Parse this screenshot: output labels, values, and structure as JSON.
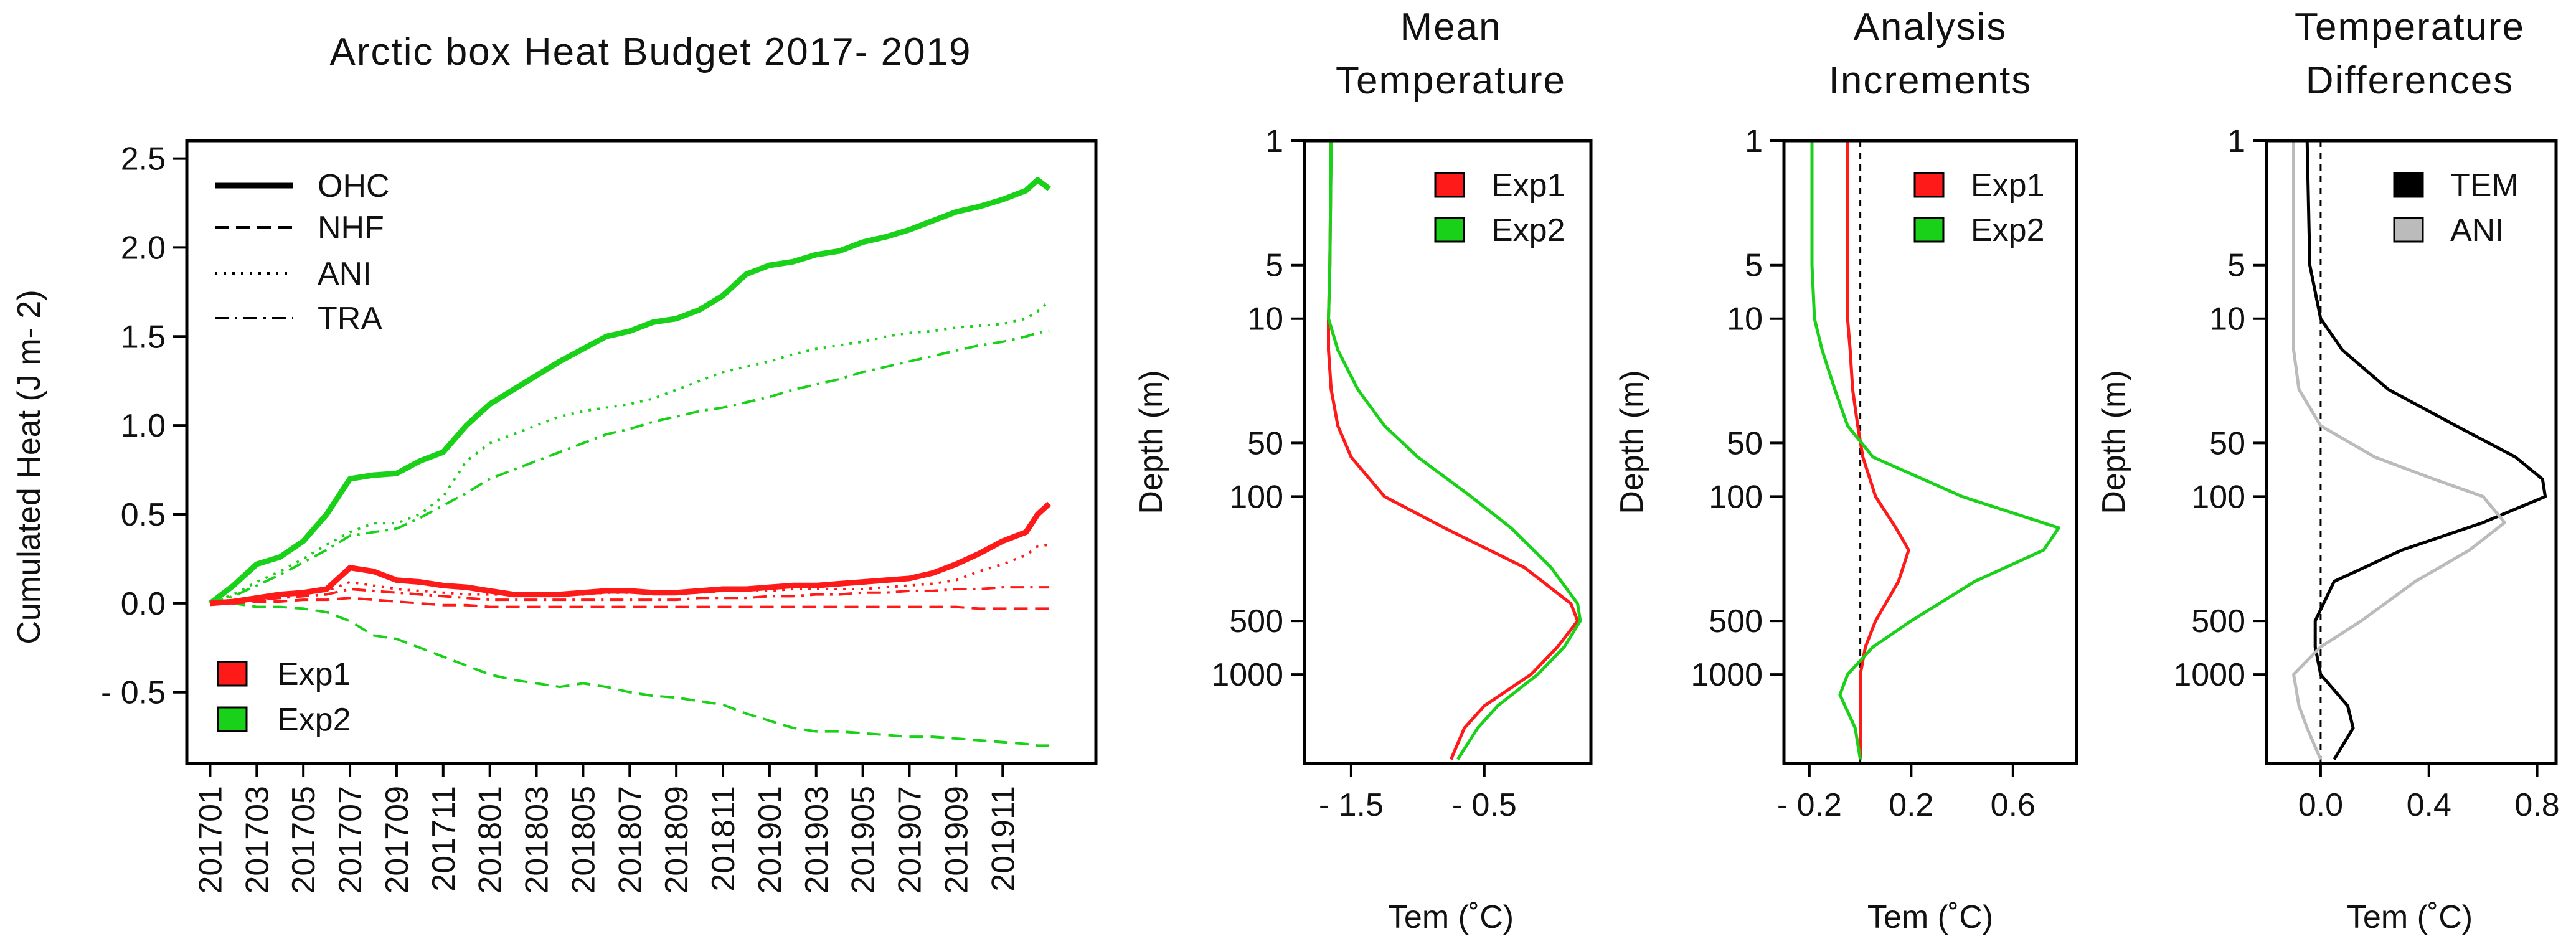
{
  "colors": {
    "exp1": "#ff1a1a",
    "exp2": "#1ad11a",
    "tem": "#000000",
    "ani": "#bbbbbb",
    "axis": "#000000"
  },
  "chart_data": [
    {
      "id": "budget",
      "type": "line",
      "title": "Arctic box Heat Budget 2017- 2019",
      "xlabel": "",
      "ylabel": "Cumulated Heat (J m- 2)",
      "ylim": [
        -0.9,
        2.6
      ],
      "yticks": [
        2.5,
        2.0,
        1.5,
        1.0,
        0.5,
        0.0,
        -0.5
      ],
      "ytick_labels": [
        "2.5",
        "2.0",
        "1.5",
        "1.0",
        "0.5",
        "0.0",
        "- 0.5"
      ],
      "xlim": [
        -1,
        38
      ],
      "xtick_positions": [
        0,
        2,
        4,
        6,
        8,
        10,
        12,
        14,
        16,
        18,
        20,
        22,
        24,
        26,
        28,
        30,
        32,
        34
      ],
      "xtick_labels": [
        "201701",
        "201703",
        "201705",
        "201707",
        "201709",
        "201711",
        "201801",
        "201803",
        "201805",
        "201807",
        "201809",
        "201811",
        "201901",
        "201903",
        "201905",
        "201907",
        "201909",
        "201911"
      ],
      "x": [
        0,
        1,
        2,
        3,
        4,
        5,
        6,
        7,
        8,
        9,
        10,
        11,
        12,
        13,
        14,
        15,
        16,
        17,
        18,
        19,
        20,
        21,
        22,
        23,
        24,
        25,
        26,
        27,
        28,
        29,
        30,
        31,
        32,
        33,
        34,
        35,
        35.5,
        36
      ],
      "series": [
        {
          "name": "Exp2 OHC",
          "experiment": "Exp2",
          "style": "OHC",
          "values": [
            0.0,
            0.1,
            0.22,
            0.26,
            0.35,
            0.5,
            0.7,
            0.72,
            0.73,
            0.8,
            0.85,
            1.0,
            1.12,
            1.2,
            1.28,
            1.36,
            1.43,
            1.5,
            1.53,
            1.58,
            1.6,
            1.65,
            1.73,
            1.85,
            1.9,
            1.92,
            1.96,
            1.98,
            2.03,
            2.06,
            2.1,
            2.15,
            2.2,
            2.23,
            2.27,
            2.32,
            2.38,
            2.33
          ]
        },
        {
          "name": "Exp2 NHF",
          "experiment": "Exp2",
          "style": "NHF",
          "values": [
            0.0,
            0.0,
            -0.02,
            -0.02,
            -0.03,
            -0.05,
            -0.1,
            -0.18,
            -0.2,
            -0.25,
            -0.3,
            -0.35,
            -0.4,
            -0.43,
            -0.45,
            -0.47,
            -0.45,
            -0.47,
            -0.5,
            -0.52,
            -0.53,
            -0.55,
            -0.57,
            -0.62,
            -0.66,
            -0.7,
            -0.72,
            -0.72,
            -0.73,
            -0.74,
            -0.75,
            -0.75,
            -0.76,
            -0.77,
            -0.78,
            -0.79,
            -0.8,
            -0.8
          ]
        },
        {
          "name": "Exp2 ANI",
          "experiment": "Exp2",
          "style": "ANI",
          "values": [
            0.0,
            0.05,
            0.12,
            0.18,
            0.25,
            0.33,
            0.4,
            0.45,
            0.45,
            0.5,
            0.6,
            0.8,
            0.9,
            0.95,
            1.0,
            1.05,
            1.08,
            1.1,
            1.12,
            1.15,
            1.2,
            1.25,
            1.3,
            1.33,
            1.36,
            1.4,
            1.43,
            1.45,
            1.47,
            1.5,
            1.52,
            1.53,
            1.55,
            1.56,
            1.57,
            1.6,
            1.64,
            1.7
          ]
        },
        {
          "name": "Exp2 TRA",
          "experiment": "Exp2",
          "style": "TRA",
          "values": [
            0.0,
            0.04,
            0.1,
            0.16,
            0.23,
            0.3,
            0.38,
            0.4,
            0.42,
            0.48,
            0.55,
            0.62,
            0.7,
            0.75,
            0.8,
            0.85,
            0.9,
            0.95,
            0.98,
            1.02,
            1.05,
            1.08,
            1.1,
            1.13,
            1.16,
            1.2,
            1.23,
            1.26,
            1.3,
            1.33,
            1.36,
            1.39,
            1.42,
            1.45,
            1.47,
            1.5,
            1.52,
            1.53
          ]
        },
        {
          "name": "Exp1 OHC",
          "experiment": "Exp1",
          "style": "OHC",
          "values": [
            0.0,
            0.01,
            0.03,
            0.05,
            0.06,
            0.08,
            0.2,
            0.18,
            0.13,
            0.12,
            0.1,
            0.09,
            0.07,
            0.05,
            0.05,
            0.05,
            0.06,
            0.07,
            0.07,
            0.06,
            0.06,
            0.07,
            0.08,
            0.08,
            0.09,
            0.1,
            0.1,
            0.11,
            0.12,
            0.13,
            0.14,
            0.17,
            0.22,
            0.28,
            0.35,
            0.4,
            0.5,
            0.56
          ]
        },
        {
          "name": "Exp1 NHF",
          "experiment": "Exp1",
          "style": "NHF",
          "values": [
            0.0,
            0.0,
            0.01,
            0.01,
            0.02,
            0.02,
            0.03,
            0.02,
            0.01,
            0.0,
            -0.01,
            -0.01,
            -0.02,
            -0.02,
            -0.02,
            -0.02,
            -0.02,
            -0.02,
            -0.02,
            -0.02,
            -0.02,
            -0.02,
            -0.02,
            -0.02,
            -0.02,
            -0.02,
            -0.02,
            -0.02,
            -0.02,
            -0.02,
            -0.02,
            -0.02,
            -0.02,
            -0.03,
            -0.03,
            -0.03,
            -0.03,
            -0.03
          ]
        },
        {
          "name": "Exp1 ANI",
          "experiment": "Exp1",
          "style": "ANI",
          "values": [
            0.0,
            0.01,
            0.03,
            0.05,
            0.06,
            0.07,
            0.12,
            0.1,
            0.08,
            0.07,
            0.06,
            0.05,
            0.05,
            0.05,
            0.05,
            0.05,
            0.05,
            0.06,
            0.06,
            0.06,
            0.06,
            0.06,
            0.07,
            0.07,
            0.07,
            0.08,
            0.08,
            0.08,
            0.08,
            0.09,
            0.1,
            0.11,
            0.13,
            0.18,
            0.22,
            0.27,
            0.32,
            0.33
          ]
        },
        {
          "name": "Exp1 TRA",
          "experiment": "Exp1",
          "style": "TRA",
          "values": [
            0.0,
            0.01,
            0.02,
            0.03,
            0.04,
            0.05,
            0.08,
            0.07,
            0.06,
            0.05,
            0.04,
            0.03,
            0.02,
            0.02,
            0.02,
            0.02,
            0.02,
            0.02,
            0.02,
            0.02,
            0.02,
            0.03,
            0.03,
            0.03,
            0.04,
            0.04,
            0.05,
            0.05,
            0.06,
            0.06,
            0.07,
            0.07,
            0.08,
            0.08,
            0.09,
            0.09,
            0.09,
            0.09
          ]
        }
      ],
      "legend_styles": [
        "OHC",
        "NHF",
        "ANI",
        "TRA"
      ],
      "legend_experiments": [
        "Exp1",
        "Exp2"
      ]
    },
    {
      "id": "meantemp",
      "type": "line",
      "title_lines": [
        "Mean",
        "Temperature"
      ],
      "xlabel": "Tem (˚C)",
      "ylabel": "Depth (m)",
      "xlim": [
        -1.85,
        0.3
      ],
      "xticks": [
        -1.5,
        -0.5
      ],
      "xtick_labels": [
        "- 1.5",
        "- 0.5"
      ],
      "yscale": "log",
      "ylim_log": [
        0,
        3.5
      ],
      "yticks": [
        1,
        5,
        10,
        50,
        100,
        500,
        1000
      ],
      "ytick_labels": [
        "1",
        "5",
        "10",
        "50",
        "100",
        "500",
        "1000"
      ],
      "depth": [
        1,
        5,
        10,
        15,
        25,
        40,
        60,
        100,
        150,
        250,
        400,
        500,
        700,
        1000,
        1500,
        2000,
        3000
      ],
      "series": [
        {
          "name": "Exp1",
          "values": [
            -1.65,
            -1.66,
            -1.67,
            -1.67,
            -1.65,
            -1.6,
            -1.5,
            -1.25,
            -0.8,
            -0.2,
            0.15,
            0.2,
            0.05,
            -0.15,
            -0.5,
            -0.65,
            -0.75
          ]
        },
        {
          "name": "Exp2",
          "values": [
            -1.65,
            -1.66,
            -1.67,
            -1.6,
            -1.45,
            -1.25,
            -1.0,
            -0.6,
            -0.3,
            0.0,
            0.2,
            0.22,
            0.1,
            -0.1,
            -0.4,
            -0.55,
            -0.7
          ]
        }
      ],
      "legend": [
        "Exp1",
        "Exp2"
      ]
    },
    {
      "id": "increments",
      "type": "line",
      "title_lines": [
        "Analysis",
        "Increments"
      ],
      "xlabel": "Tem (˚C)",
      "ylabel": "Depth (m)",
      "xlim": [
        -0.3,
        0.85
      ],
      "xticks": [
        -0.2,
        0.2,
        0.6
      ],
      "xtick_labels": [
        "- 0.2",
        "0.2",
        "0.6"
      ],
      "yscale": "log",
      "ylim_log": [
        0,
        3.5
      ],
      "yticks": [
        1,
        5,
        10,
        50,
        100,
        500,
        1000
      ],
      "ytick_labels": [
        "1",
        "5",
        "10",
        "50",
        "100",
        "500",
        "1000"
      ],
      "ref_x": 0,
      "depth": [
        1,
        5,
        10,
        15,
        25,
        40,
        60,
        100,
        150,
        200,
        300,
        500,
        700,
        1000,
        1300,
        2000,
        3000
      ],
      "series": [
        {
          "name": "Exp1",
          "values": [
            -0.05,
            -0.05,
            -0.05,
            -0.04,
            -0.03,
            -0.01,
            0.01,
            0.06,
            0.14,
            0.19,
            0.15,
            0.06,
            0.02,
            0.0,
            0.0,
            0.0,
            0.0
          ]
        },
        {
          "name": "Exp2",
          "values": [
            -0.19,
            -0.19,
            -0.18,
            -0.15,
            -0.1,
            -0.05,
            0.05,
            0.4,
            0.78,
            0.72,
            0.45,
            0.2,
            0.05,
            -0.05,
            -0.08,
            -0.02,
            0.0
          ]
        }
      ],
      "legend": [
        "Exp1",
        "Exp2"
      ]
    },
    {
      "id": "differences",
      "type": "line",
      "title_lines": [
        "Temperature",
        "Differences"
      ],
      "xlabel": "Tem (˚C)",
      "ylabel": "Depth (m)",
      "xlim": [
        -0.2,
        0.87
      ],
      "xticks": [
        0.0,
        0.4,
        0.8
      ],
      "xtick_labels": [
        "0.0",
        "0.4",
        "0.8"
      ],
      "yscale": "log",
      "ylim_log": [
        0,
        3.5
      ],
      "yticks": [
        1,
        5,
        10,
        50,
        100,
        500,
        1000
      ],
      "ytick_labels": [
        "1",
        "5",
        "10",
        "50",
        "100",
        "500",
        "1000"
      ],
      "ref_x": 0,
      "depth": [
        1,
        5,
        10,
        15,
        25,
        40,
        60,
        80,
        100,
        140,
        200,
        300,
        500,
        700,
        1000,
        1500,
        2000,
        3000
      ],
      "series": [
        {
          "name": "TEM",
          "values": [
            -0.05,
            -0.04,
            0.0,
            0.08,
            0.25,
            0.5,
            0.72,
            0.82,
            0.83,
            0.6,
            0.3,
            0.05,
            -0.02,
            -0.02,
            0.0,
            0.1,
            0.12,
            0.05
          ]
        },
        {
          "name": "ANI",
          "values": [
            -0.1,
            -0.1,
            -0.1,
            -0.1,
            -0.08,
            0.0,
            0.2,
            0.42,
            0.6,
            0.68,
            0.55,
            0.35,
            0.15,
            0.0,
            -0.1,
            -0.08,
            -0.05,
            0.0
          ]
        }
      ],
      "legend": [
        "TEM",
        "ANI"
      ]
    }
  ]
}
